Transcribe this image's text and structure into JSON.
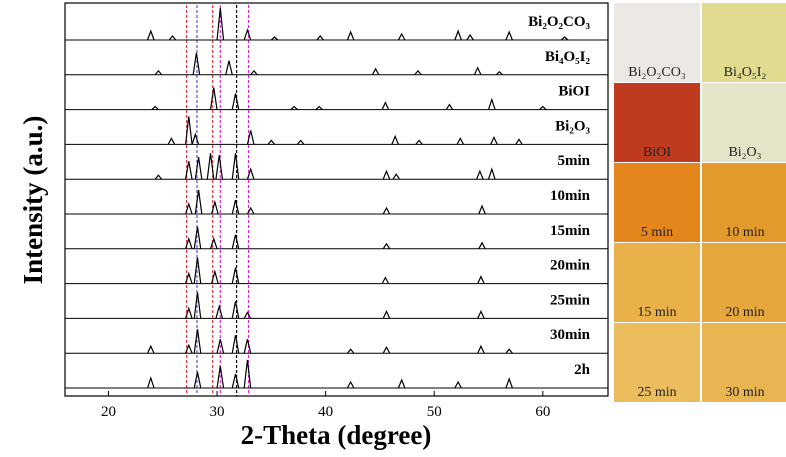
{
  "chart_data": {
    "type": "line",
    "xlabel": "2-Theta (degree)",
    "ylabel": "Intensity (a.u.)",
    "xlim": [
      16,
      66
    ],
    "xticks": [
      20,
      30,
      40,
      50,
      60
    ],
    "series": [
      {
        "name": "Bi₂O₂CO₃",
        "color": "#000000",
        "x": [
          23.9,
          25.9,
          30.3,
          32.8,
          35.3,
          39.5,
          42.3,
          47.0,
          52.2,
          53.3,
          56.9,
          62.0
        ],
        "values": [
          9,
          4,
          32,
          10,
          3,
          4,
          8,
          6,
          9,
          5,
          8,
          3
        ]
      },
      {
        "name": "Bi₄O₅I₂",
        "color": "#000000",
        "x": [
          24.6,
          28.1,
          31.1,
          33.4,
          44.6,
          48.5,
          54.0,
          56.0
        ],
        "values": [
          4,
          22,
          14,
          4,
          6,
          4,
          7,
          3
        ]
      },
      {
        "name": "BiOI",
        "color": "#000000",
        "x": [
          24.3,
          29.7,
          31.7,
          37.1,
          39.4,
          45.5,
          51.4,
          55.3,
          60.0
        ],
        "values": [
          3,
          22,
          16,
          3,
          3,
          7,
          5,
          10,
          3
        ]
      },
      {
        "name": "Bi₂O₃",
        "color": "#000000",
        "x": [
          25.8,
          27.4,
          28.0,
          33.1,
          35.0,
          37.7,
          46.4,
          48.6,
          52.4,
          55.5,
          57.8
        ],
        "values": [
          6,
          28,
          10,
          14,
          4,
          4,
          8,
          4,
          6,
          7,
          5
        ]
      },
      {
        "name": "5min",
        "color": "#000000",
        "x": [
          24.6,
          27.4,
          28.3,
          29.4,
          30.2,
          31.7,
          33.1,
          45.6,
          46.5,
          54.2,
          55.3
        ],
        "values": [
          4,
          18,
          22,
          26,
          24,
          26,
          10,
          8,
          5,
          8,
          10
        ]
      },
      {
        "name": "10min",
        "color": "#000000",
        "x": [
          27.4,
          28.3,
          29.8,
          31.7,
          33.1,
          45.6,
          54.4
        ],
        "values": [
          10,
          24,
          12,
          14,
          6,
          6,
          8
        ]
      },
      {
        "name": "15min",
        "color": "#000000",
        "x": [
          27.4,
          28.2,
          29.7,
          31.7,
          45.6,
          54.4
        ],
        "values": [
          10,
          22,
          10,
          14,
          5,
          6
        ]
      },
      {
        "name": "20min",
        "color": "#000000",
        "x": [
          27.4,
          28.2,
          29.8,
          31.7,
          45.5,
          54.3
        ],
        "values": [
          10,
          26,
          12,
          16,
          6,
          7
        ]
      },
      {
        "name": "25min",
        "color": "#000000",
        "x": [
          27.4,
          28.2,
          30.2,
          31.7,
          32.8,
          45.6,
          54.3
        ],
        "values": [
          10,
          26,
          12,
          17,
          6,
          7,
          7
        ]
      },
      {
        "name": "30min",
        "color": "#000000",
        "x": [
          23.9,
          27.4,
          28.2,
          30.3,
          31.7,
          32.8,
          42.3,
          45.6,
          54.3,
          56.9
        ],
        "values": [
          7,
          8,
          24,
          14,
          18,
          14,
          4,
          6,
          7,
          4
        ]
      },
      {
        "name": "2h",
        "color": "#000000",
        "x": [
          23.9,
          28.2,
          30.3,
          31.7,
          32.8,
          42.3,
          47.0,
          52.2,
          56.9
        ],
        "values": [
          10,
          16,
          22,
          14,
          28,
          6,
          8,
          6,
          9
        ]
      }
    ],
    "reference_lines": [
      {
        "x": 27.2,
        "color": "#e03040"
      },
      {
        "x": 28.15,
        "color": "#6a4ad0"
      },
      {
        "x": 29.6,
        "color": "#e03040"
      },
      {
        "x": 30.3,
        "color": "#e020d0"
      },
      {
        "x": 31.8,
        "color": "#000000"
      },
      {
        "x": 32.9,
        "color": "#e020d0"
      }
    ]
  },
  "photos": [
    {
      "label": "Bi₂O₂CO₃",
      "color": "#ece9e4"
    },
    {
      "label": "Bi₄O₅I₂",
      "color": "#e0db8e"
    },
    {
      "label": "BiOI",
      "color": "#c03a1f"
    },
    {
      "label": "Bi₂O₃",
      "color": "#e6e4c8"
    },
    {
      "label": "5 min",
      "color": "#e4861c"
    },
    {
      "label": "10 min",
      "color": "#e39a2c"
    },
    {
      "label": "15 min",
      "color": "#eab04a"
    },
    {
      "label": "20 min",
      "color": "#e6a83c"
    },
    {
      "label": "25 min",
      "color": "#ebbd5c"
    },
    {
      "label": "30 min",
      "color": "#e8b552"
    }
  ]
}
